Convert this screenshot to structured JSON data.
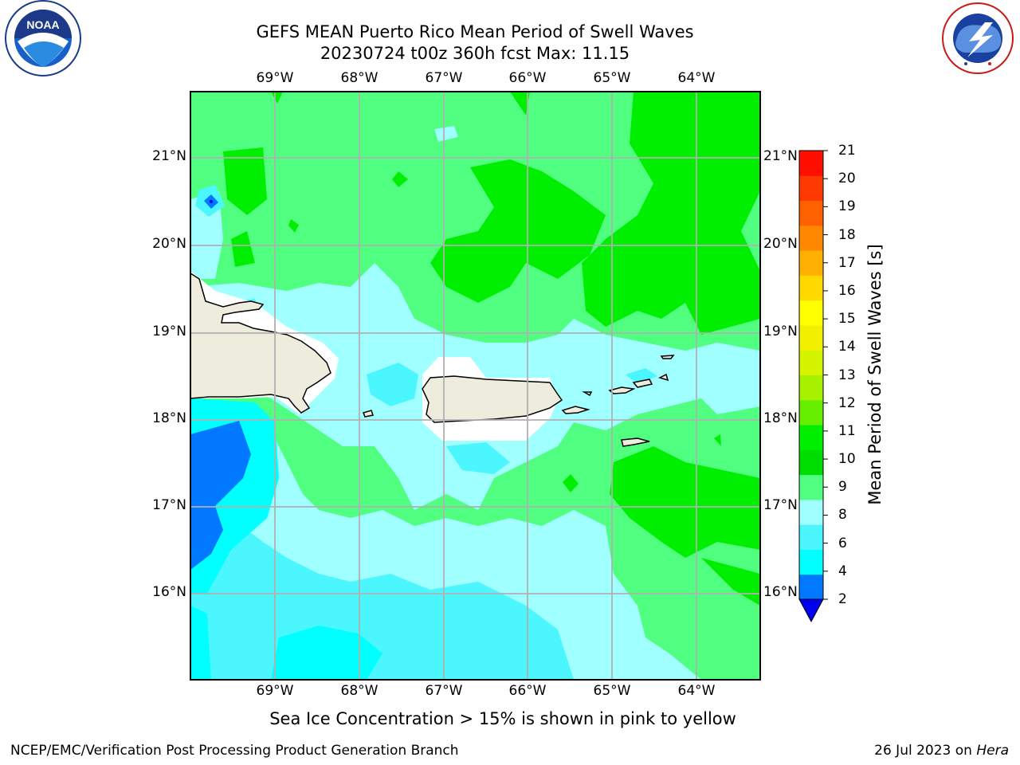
{
  "title_line1": "GEFS MEAN Puerto Rico Mean Period of Swell Waves",
  "title_line2": "20230724 t00z 360h fcst   Max: 11.15",
  "lon_labels": [
    "69°W",
    "68°W",
    "67°W",
    "66°W",
    "65°W",
    "64°W"
  ],
  "lat_labels": [
    "21°N",
    "20°N",
    "19°N",
    "18°N",
    "17°N",
    "16°N"
  ],
  "colorbar": {
    "title": "Mean Period of Swell Waves [s]",
    "ticks": [
      "21",
      "20",
      "19",
      "18",
      "17",
      "16",
      "15",
      "14",
      "13",
      "12",
      "11",
      "10",
      "9",
      "8",
      "6",
      "4",
      "2"
    ],
    "colors": [
      "#0000ee",
      "#0078ff",
      "#00ffff",
      "#4cf6ff",
      "#a0ffff",
      "#50ff80",
      "#00dd00",
      "#00ee00",
      "#66ee00",
      "#a6f000",
      "#d4f400",
      "#f2f000",
      "#ffff00",
      "#ffd800",
      "#ffb000",
      "#ff8800",
      "#ff6000",
      "#ff3a00",
      "#ff1000"
    ]
  },
  "map": {
    "region": "Puerto Rico",
    "land_color": "#eeecdc",
    "ice_note": "Sea Ice Concentration > 15% is shown in pink to yellow"
  },
  "footer_left": "NCEP/EMC/Verification Post Processing Product Generation Branch",
  "footer_date": "26 Jul 2023 on",
  "footer_machine": "Hera",
  "logos": {
    "left": "NOAA",
    "right": "NATIONAL WEATHER SERVICE"
  }
}
